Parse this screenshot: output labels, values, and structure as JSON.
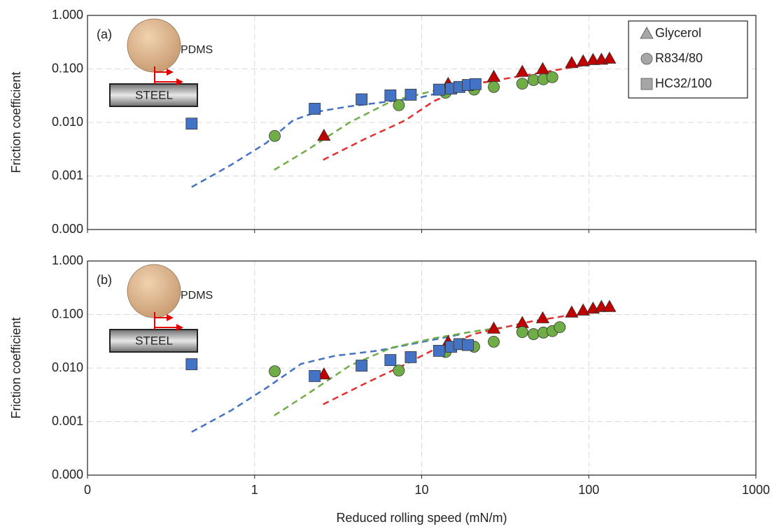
{
  "chart_data": [
    {
      "type": "scatter",
      "panel_label": "(a)",
      "ball_label": "PDMS",
      "surface_label": "STEEL",
      "ylabel": "Friction coefficient",
      "log_x": true,
      "log_y": true,
      "grid": true,
      "xlim": [
        0.1,
        1000
      ],
      "xticks": [
        0.1,
        1,
        10,
        100,
        1000
      ],
      "xtick_labels": false,
      "ylim": [
        0.0001,
        1
      ],
      "yticks": [
        {
          "value": 0.0001,
          "label": "0.000"
        },
        {
          "value": 0.001,
          "label": "0.001"
        },
        {
          "value": 0.01,
          "label": "0.010"
        },
        {
          "value": 0.1,
          "label": "0.100"
        },
        {
          "value": 1,
          "label": "1.000"
        }
      ],
      "legend": "upper right",
      "legend_marker_color": "#a6a6a6",
      "series": [
        {
          "name": "Glycerol",
          "marker": "triangle",
          "color": "#c00000",
          "x": [
            2.6,
            14.4,
            27,
            40,
            53,
            79,
            92.5,
            106,
            119,
            133
          ],
          "values": [
            0.0057,
            0.053,
            0.072,
            0.089,
            0.1,
            0.13,
            0.14,
            0.148,
            0.15,
            0.157
          ]
        },
        {
          "name": "R834/80",
          "marker": "circle",
          "color": "#70ad47",
          "x": [
            1.32,
            7.3,
            13.9,
            20.6,
            27,
            40,
            46.7,
            53.5,
            60.5
          ],
          "values": [
            0.0056,
            0.021,
            0.036,
            0.041,
            0.046,
            0.053,
            0.062,
            0.064,
            0.07
          ]
        },
        {
          "name": "HC32/100",
          "marker": "square",
          "color": "#4472c4",
          "x": [
            0.42,
            2.29,
            4.37,
            6.5,
            8.6,
            12.7,
            15,
            16.8,
            18.9,
            21
          ],
          "values": [
            0.0095,
            0.018,
            0.027,
            0.032,
            0.033,
            0.041,
            0.043,
            0.046,
            0.05,
            0.052
          ]
        }
      ],
      "fits": [
        {
          "color": "#4472c4",
          "x": [
            0.42,
            0.72,
            1.17,
            1.7,
            2.4,
            3.7,
            6.6,
            9.7,
            15.7
          ],
          "values": [
            0.00062,
            0.0016,
            0.0041,
            0.011,
            0.016,
            0.02,
            0.025,
            0.029,
            0.042
          ]
        },
        {
          "color": "#70ad47",
          "x": [
            1.31,
            2.08,
            3.7,
            6.6,
            11.8,
            21,
            28
          ],
          "values": [
            0.0013,
            0.0031,
            0.01,
            0.025,
            0.039,
            0.053,
            0.06
          ]
        },
        {
          "color": "#e03030",
          "x": [
            2.57,
            4.5,
            8,
            11.8,
            21,
            45,
            98,
            133
          ],
          "values": [
            0.002,
            0.0048,
            0.011,
            0.025,
            0.053,
            0.079,
            0.12,
            0.15
          ]
        }
      ]
    },
    {
      "type": "scatter",
      "panel_label": "(b)",
      "ball_label": "PDMS",
      "surface_label": "STEEL",
      "ylabel": "Friction coefficient",
      "xlabel": "Reduced rolling speed (mN/m)",
      "log_x": true,
      "log_y": true,
      "grid": true,
      "xlim": [
        0.1,
        1000
      ],
      "xticks": [
        {
          "value": 0.1,
          "label": "0"
        },
        1,
        10,
        100,
        1000
      ],
      "xtick_labels": true,
      "ylim": [
        0.0001,
        1
      ],
      "yticks": [
        {
          "value": 0.0001,
          "label": "0.000"
        },
        {
          "value": 0.001,
          "label": "0.001"
        },
        {
          "value": 0.01,
          "label": "0.010"
        },
        {
          "value": 0.1,
          "label": "0.100"
        },
        {
          "value": 1,
          "label": "1.000"
        }
      ],
      "series": [
        {
          "marker": "triangle",
          "color": "#c00000",
          "x": [
            2.6,
            14.4,
            27,
            40,
            53,
            79,
            92.5,
            106,
            119,
            133
          ],
          "values": [
            0.0077,
            0.031,
            0.055,
            0.07,
            0.086,
            0.11,
            0.12,
            0.13,
            0.14,
            0.14
          ]
        },
        {
          "marker": "circle",
          "color": "#70ad47",
          "x": [
            1.32,
            7.3,
            13.9,
            20.6,
            27,
            40,
            46.7,
            53.5,
            60.5,
            67
          ],
          "values": [
            0.0087,
            0.009,
            0.02,
            0.025,
            0.031,
            0.047,
            0.043,
            0.046,
            0.049,
            0.058
          ]
        },
        {
          "marker": "square",
          "color": "#4472c4",
          "x": [
            0.42,
            2.29,
            4.37,
            6.5,
            8.6,
            12.7,
            15,
            16.8,
            18.9
          ],
          "values": [
            0.0118,
            0.0071,
            0.0111,
            0.0141,
            0.016,
            0.021,
            0.025,
            0.028,
            0.027
          ]
        }
      ],
      "fits": [
        {
          "color": "#4472c4",
          "x": [
            0.42,
            0.72,
            1.17,
            1.9,
            3.05,
            5.4,
            9.7,
            17.3
          ],
          "values": [
            0.00064,
            0.0016,
            0.0042,
            0.012,
            0.017,
            0.021,
            0.03,
            0.043
          ]
        },
        {
          "color": "#70ad47",
          "x": [
            1.31,
            2.08,
            3.7,
            6.6,
            11.8,
            21,
            31
          ],
          "values": [
            0.0013,
            0.0033,
            0.011,
            0.024,
            0.036,
            0.049,
            0.058
          ]
        },
        {
          "color": "#e03030",
          "x": [
            2.57,
            4.5,
            8,
            11.8,
            21,
            45,
            98,
            133
          ],
          "values": [
            0.0021,
            0.005,
            0.0118,
            0.022,
            0.044,
            0.074,
            0.11,
            0.14
          ]
        }
      ]
    }
  ]
}
